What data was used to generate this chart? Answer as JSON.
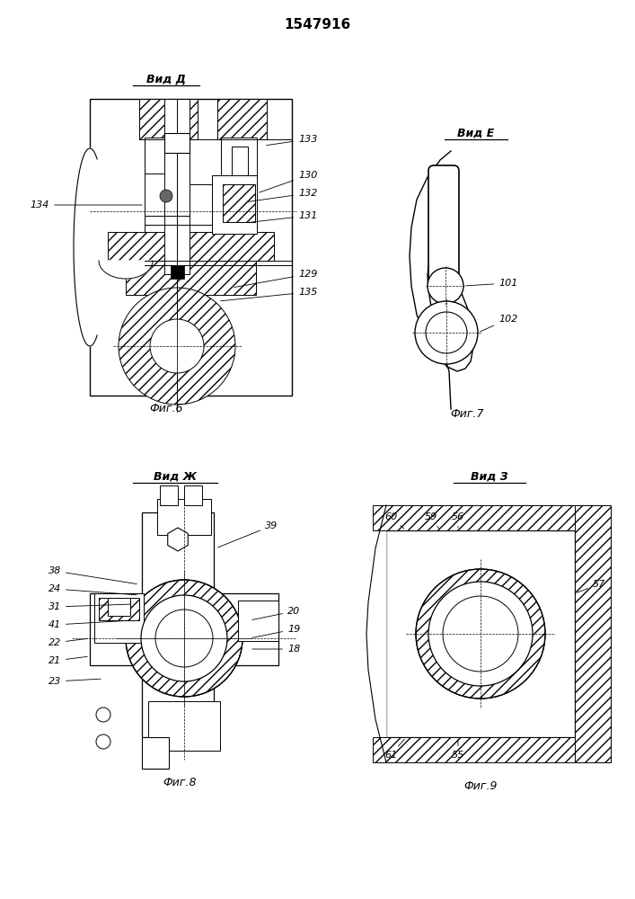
{
  "patent_number": "1547916",
  "bg": "#ffffff",
  "lc": "#000000",
  "fig6_title": "Вид Д",
  "fig7_title": "Вид Е",
  "fig8_title": "Вид Ж",
  "fig9_title": "Вид З",
  "fig6_cap": "Фиг.6",
  "fig7_cap": "Фиг.7",
  "fig8_cap": "Фиг.8",
  "fig9_cap": "Фиг.9"
}
